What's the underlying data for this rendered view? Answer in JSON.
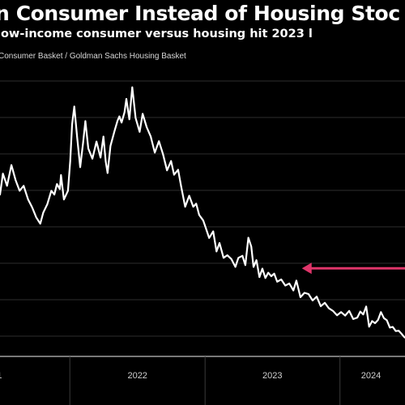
{
  "header": {
    "title": "n Consumer Instead of Housing Stoc",
    "subtitle": "low-income consumer versus housing hit 2023 l",
    "legend_text": "Consumer Basket / Goldman Sachs Housing Basket"
  },
  "colors": {
    "background": "#000000",
    "line": "#ffffff",
    "grid": "#2e2e2e",
    "annotation_arrow": "#e0356a"
  },
  "chart_data": {
    "type": "line",
    "title": "n Consumer Instead of Housing Stoc",
    "subtitle": "low-income consumer versus housing hit 2023 l",
    "xlabel": "",
    "ylabel": "",
    "x_ticks": [
      "2022",
      "2023",
      "2024"
    ],
    "xlim": [
      "2021-06-25",
      "2024-06-25"
    ],
    "ylim": [
      0,
      100
    ],
    "grid": true,
    "legend": "top-left",
    "series": [
      {
        "name": "Consumer Basket / Goldman Sachs Housing Basket",
        "x": [
          "2021-06-25",
          "2021-07-03",
          "2021-07-14",
          "2021-07-26",
          "2021-08-06",
          "2021-08-17",
          "2021-08-28",
          "2021-09-09",
          "2021-09-20",
          "2021-10-01",
          "2021-10-12",
          "2021-10-20",
          "2021-10-31",
          "2021-11-11",
          "2021-11-19",
          "2021-11-26",
          "2021-12-04",
          "2021-12-07",
          "2021-12-15",
          "2021-12-26",
          "2022-01-01",
          "2022-01-06",
          "2022-01-12",
          "2022-01-20",
          "2022-01-28",
          "2022-02-05",
          "2022-02-11",
          "2022-02-19",
          "2022-03-02",
          "2022-03-13",
          "2022-03-24",
          "2022-04-01",
          "2022-04-07",
          "2022-04-12",
          "2022-04-20",
          "2022-05-01",
          "2022-05-09",
          "2022-05-14",
          "2022-05-20",
          "2022-05-28",
          "2022-06-02",
          "2022-06-10",
          "2022-06-18",
          "2022-06-27",
          "2022-07-08",
          "2022-07-16",
          "2022-07-27",
          "2022-08-07",
          "2022-08-18",
          "2022-08-29",
          "2022-09-09",
          "2022-09-20",
          "2022-10-01",
          "2022-10-09",
          "2022-10-20",
          "2022-10-28",
          "2022-11-08",
          "2022-11-19",
          "2022-11-30",
          "2022-12-08",
          "2022-12-16",
          "2022-12-27",
          "2023-01-04",
          "2023-01-12",
          "2023-01-23",
          "2023-02-01",
          "2023-02-09",
          "2023-02-20",
          "2023-03-02",
          "2023-03-13",
          "2023-03-24",
          "2023-04-01",
          "2023-04-12",
          "2023-04-20",
          "2023-04-28",
          "2023-05-06",
          "2023-05-12",
          "2023-05-20",
          "2023-05-28",
          "2023-06-05",
          "2023-06-13",
          "2023-06-21",
          "2023-06-29",
          "2023-07-07",
          "2023-07-15",
          "2023-07-26",
          "2023-08-06",
          "2023-08-17",
          "2023-08-28",
          "2023-09-05",
          "2023-09-16",
          "2023-09-27",
          "2023-10-08",
          "2023-10-19",
          "2023-10-30",
          "2023-11-10",
          "2023-11-21",
          "2023-12-02",
          "2023-12-13",
          "2023-12-24",
          "2024-01-04",
          "2024-01-15",
          "2024-01-26",
          "2024-02-06",
          "2024-02-17",
          "2024-02-25",
          "2024-03-04",
          "2024-03-12",
          "2024-03-20",
          "2024-03-28",
          "2024-04-05",
          "2024-04-13",
          "2024-04-21",
          "2024-04-29",
          "2024-05-07",
          "2024-05-15",
          "2024-05-23",
          "2024-05-31",
          "2024-06-08",
          "2024-06-16",
          "2024-06-24"
        ],
        "y": [
          55.5,
          62.7,
          58.5,
          65.6,
          60.5,
          56.8,
          58.5,
          53.8,
          51.1,
          47.7,
          45.5,
          49.3,
          52.2,
          56.8,
          55.5,
          59.1,
          57.4,
          62.2,
          53.8,
          56.8,
          67.0,
          79.5,
          85.7,
          75.0,
          64.9,
          73.3,
          80.7,
          71.3,
          67.8,
          73.7,
          68.2,
          75.4,
          66.9,
          62.9,
          72.2,
          77.3,
          80.8,
          82.3,
          80.2,
          83.7,
          88.3,
          81.3,
          92.3,
          81.8,
          77.0,
          83.2,
          78.6,
          75.4,
          69.9,
          73.8,
          69.4,
          63.8,
          67.0,
          62.3,
          64.0,
          58.5,
          51.3,
          55.1,
          51.3,
          52.4,
          48.5,
          46.6,
          43.6,
          40.6,
          42.9,
          36.0,
          38.9,
          33.8,
          34.7,
          33.4,
          30.7,
          33.8,
          34.5,
          31.3,
          40.7,
          37.7,
          30.7,
          33.0,
          27.2,
          30.1,
          26.9,
          28.7,
          27.5,
          28.4,
          25.6,
          26.4,
          24.3,
          25.0,
          22.6,
          26.0,
          20.3,
          21.8,
          21.4,
          19.2,
          20.5,
          17.2,
          18.4,
          16.5,
          15.6,
          14.1,
          15.2,
          14.0,
          15.6,
          12.8,
          13.3,
          15.4,
          14.4,
          17.1,
          10.2,
          12.1,
          11.4,
          12.5,
          15.2,
          13.1,
          12.4,
          9.9,
          10.1,
          8.7,
          8.8,
          7.7,
          6.5
        ]
      }
    ],
    "annotations": [
      {
        "type": "arrow",
        "y": 30.2,
        "from_x": "2024-06-25",
        "to_x": "2023-09-20",
        "color": "#e0356a"
      }
    ]
  }
}
